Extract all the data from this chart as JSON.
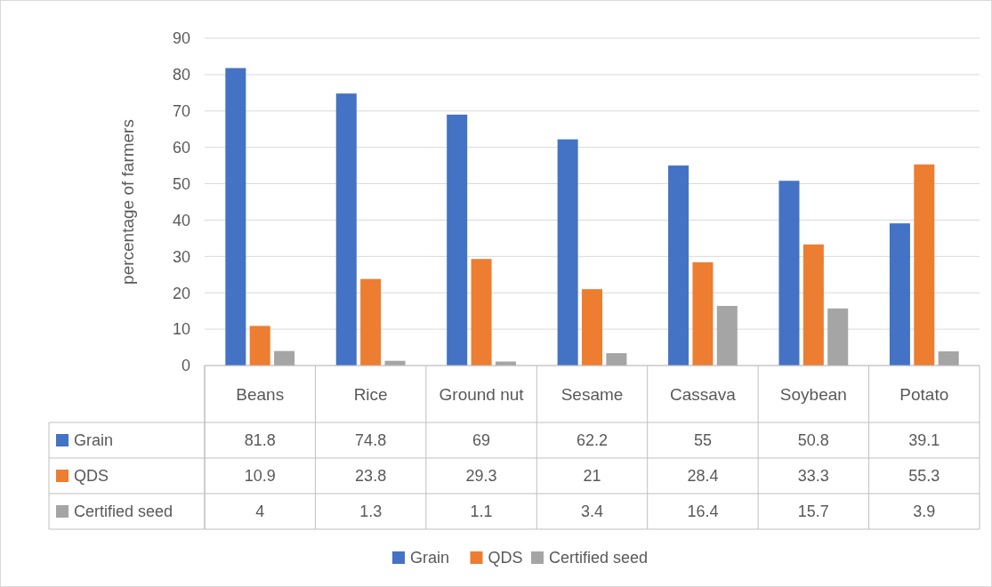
{
  "chart_data": {
    "type": "bar",
    "ylabel": "percentage  of farmers",
    "categories": [
      "Beans",
      "Rice",
      "Ground nut",
      "Sesame",
      "Cassava",
      "Soybean",
      "Potato"
    ],
    "series": [
      {
        "name": "Grain",
        "color": "#4472c4",
        "values": [
          81.8,
          74.8,
          69,
          62.2,
          55,
          50.8,
          39.1
        ]
      },
      {
        "name": "QDS",
        "color": "#ed7d31",
        "values": [
          10.9,
          23.8,
          29.3,
          21,
          28.4,
          33.3,
          55.3
        ]
      },
      {
        "name": "Certified seed",
        "color": "#a5a5a5",
        "values": [
          4,
          1.3,
          1.1,
          3.4,
          16.4,
          15.7,
          3.9
        ]
      }
    ],
    "ylim": [
      0,
      90
    ],
    "yticks": [
      0,
      10,
      20,
      30,
      40,
      50,
      60,
      70,
      80,
      90
    ],
    "grid": "y",
    "legend": "bottom",
    "data_labels": true
  }
}
